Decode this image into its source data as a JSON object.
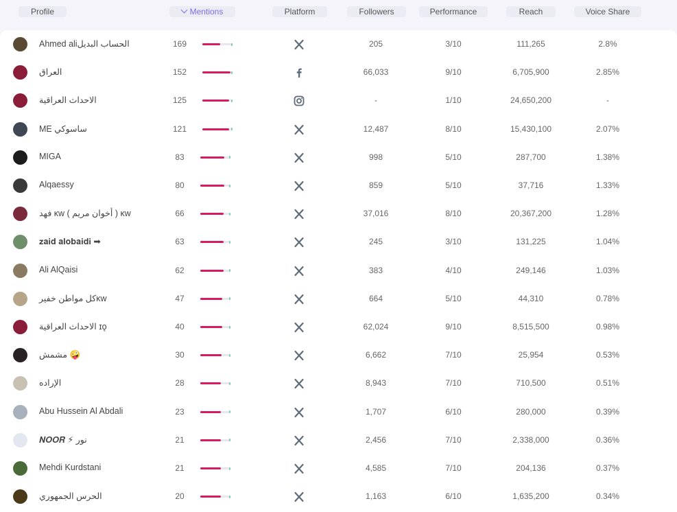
{
  "columns": {
    "profile": "Profile",
    "mentions": "Mentions",
    "platform": "Platform",
    "followers": "Followers",
    "performance": "Performance",
    "reach": "Reach",
    "voice_share": "Voice Share"
  },
  "colors": {
    "accent": "#7b6ee6",
    "bar": "#d81b60",
    "bar_tip": "#7ecbb8",
    "icon": "#5f6b7a"
  },
  "rows": [
    {
      "name": "Ahmed aliالحساب البديل",
      "mentions": "169",
      "platform": "x-icon",
      "followers": "205",
      "performance": "3/10",
      "reach": "111,265",
      "voice_share": "2.8%",
      "avatar": "#5a4a34"
    },
    {
      "name": "العراق",
      "mentions": "152",
      "platform": "facebook-icon",
      "followers": "66,033",
      "performance": "9/10",
      "reach": "6,705,900",
      "voice_share": "2.85%",
      "avatar": "#8a1e3a"
    },
    {
      "name": "الاحداث العراقية",
      "mentions": "125",
      "platform": "instagram-icon",
      "followers": "-",
      "performance": "1/10",
      "reach": "24,650,200",
      "voice_share": "-",
      "avatar": "#8a1e3a"
    },
    {
      "name": "ME ساسوكي",
      "mentions": "121",
      "platform": "x-icon",
      "followers": "12,487",
      "performance": "8/10",
      "reach": "15,430,100",
      "voice_share": "2.07%",
      "avatar": "#3e4752"
    },
    {
      "name": "MIGA",
      "mentions": "83",
      "platform": "x-icon",
      "followers": "998",
      "performance": "5/10",
      "reach": "287,700",
      "voice_share": "1.38%",
      "avatar": "#1c1c1c"
    },
    {
      "name": "Alqaessy",
      "mentions": "80",
      "platform": "x-icon",
      "followers": "859",
      "performance": "5/10",
      "reach": "37,716",
      "voice_share": "1.33%",
      "avatar": "#3a3a3a"
    },
    {
      "name": "فهد ᴋᴡ ( أخوان مريم ) ᴋᴡ",
      "mentions": "66",
      "platform": "x-icon",
      "followers": "37,016",
      "performance": "8/10",
      "reach": "20,367,200",
      "voice_share": "1.28%",
      "avatar": "#7a2a3a"
    },
    {
      "name": "𝐳𝐚𝐢𝐝 𝐚𝐥𝐨𝐛𝐚𝐢𝐝𝐢 ➡",
      "mentions": "63",
      "platform": "x-icon",
      "followers": "245",
      "performance": "3/10",
      "reach": "131,225",
      "voice_share": "1.04%",
      "avatar": "#6e8f6a"
    },
    {
      "name": "Ali AlQaisi",
      "mentions": "62",
      "platform": "x-icon",
      "followers": "383",
      "performance": "4/10",
      "reach": "249,146",
      "voice_share": "1.03%",
      "avatar": "#8a7a62"
    },
    {
      "name": "كل مواطن خفيرᴋᴡ",
      "mentions": "47",
      "platform": "x-icon",
      "followers": "664",
      "performance": "5/10",
      "reach": "44,310",
      "voice_share": "0.78%",
      "avatar": "#b7a58a"
    },
    {
      "name": "الاحداث العراقية ɪǫ",
      "mentions": "40",
      "platform": "x-icon",
      "followers": "62,024",
      "performance": "9/10",
      "reach": "8,515,500",
      "voice_share": "0.98%",
      "avatar": "#8a1e3a"
    },
    {
      "name": "مشمش 🤪",
      "mentions": "30",
      "platform": "x-icon",
      "followers": "6,662",
      "performance": "7/10",
      "reach": "25,954",
      "voice_share": "0.53%",
      "avatar": "#2a2326"
    },
    {
      "name": "الإراده",
      "mentions": "28",
      "platform": "x-icon",
      "followers": "8,943",
      "performance": "7/10",
      "reach": "710,500",
      "voice_share": "0.51%",
      "avatar": "#c9c2b4"
    },
    {
      "name": "Abu Hussein Al Abdali",
      "mentions": "23",
      "platform": "x-icon",
      "followers": "1,707",
      "performance": "6/10",
      "reach": "280,000",
      "voice_share": "0.39%",
      "avatar": "#a6b1bb"
    },
    {
      "name": "𝑵𝑶𝑶𝑹 ⚡ نور",
      "mentions": "21",
      "platform": "x-icon",
      "followers": "2,456",
      "performance": "7/10",
      "reach": "2,338,000",
      "voice_share": "0.36%",
      "avatar": "#e3e8f0"
    },
    {
      "name": "Mehdi Kurdstani",
      "mentions": "21",
      "platform": "x-icon",
      "followers": "4,585",
      "performance": "7/10",
      "reach": "204,136",
      "voice_share": "0.37%",
      "avatar": "#4a6a3a"
    },
    {
      "name": "الحرس الجمهوري",
      "mentions": "20",
      "platform": "x-icon",
      "followers": "1,163",
      "performance": "6/10",
      "reach": "1,635,200",
      "voice_share": "0.34%",
      "avatar": "#4a3a1a"
    }
  ]
}
